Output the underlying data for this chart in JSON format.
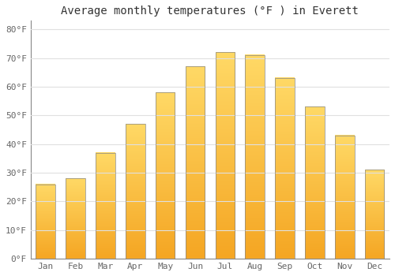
{
  "title": "Average monthly temperatures (°F ) in Everett",
  "months": [
    "Jan",
    "Feb",
    "Mar",
    "Apr",
    "May",
    "Jun",
    "Jul",
    "Aug",
    "Sep",
    "Oct",
    "Nov",
    "Dec"
  ],
  "values": [
    26,
    28,
    37,
    47,
    58,
    67,
    72,
    71,
    63,
    53,
    43,
    31
  ],
  "bar_color_bottom": "#F5A623",
  "bar_color_top": "#FFD966",
  "bar_edge_color": "#888888",
  "yticks": [
    0,
    10,
    20,
    30,
    40,
    50,
    60,
    70,
    80
  ],
  "ylim": [
    0,
    83
  ],
  "background_color": "#ffffff",
  "grid_color": "#e0e0e0",
  "title_fontsize": 10,
  "tick_fontsize": 8,
  "tick_color": "#666666"
}
